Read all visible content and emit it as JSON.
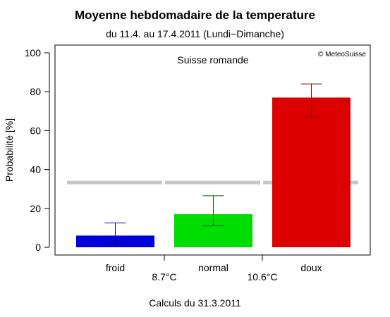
{
  "header": {
    "title": "Moyenne hebdomadaire de la temperature",
    "subtitle": "du 11.4. au 17.4.2011 (Lundi−Dimanche)"
  },
  "panel": {
    "region": "Suisse romande",
    "credit": "© MeteoSuisse"
  },
  "chart_data": {
    "type": "bar",
    "categories": [
      "froid",
      "normal",
      "doux"
    ],
    "values": [
      6,
      17,
      77
    ],
    "error_low": [
      2,
      11,
      67
    ],
    "error_high": [
      12.5,
      26.5,
      84
    ],
    "colors": [
      "#0000dd",
      "#00dd00",
      "#dd0000"
    ],
    "error_colors": [
      "#000088",
      "#006600",
      "#880000"
    ],
    "reference_line": 33.3,
    "reference_color": "#c8c8c8",
    "thresholds": [
      "8.7°C",
      "10.6°C"
    ],
    "ylabel": "Probabilité [%]",
    "xlabel": "Calculs du 31.3.2011",
    "ylim": [
      0,
      100
    ],
    "yticks": [
      0,
      20,
      40,
      60,
      80,
      100
    ]
  }
}
